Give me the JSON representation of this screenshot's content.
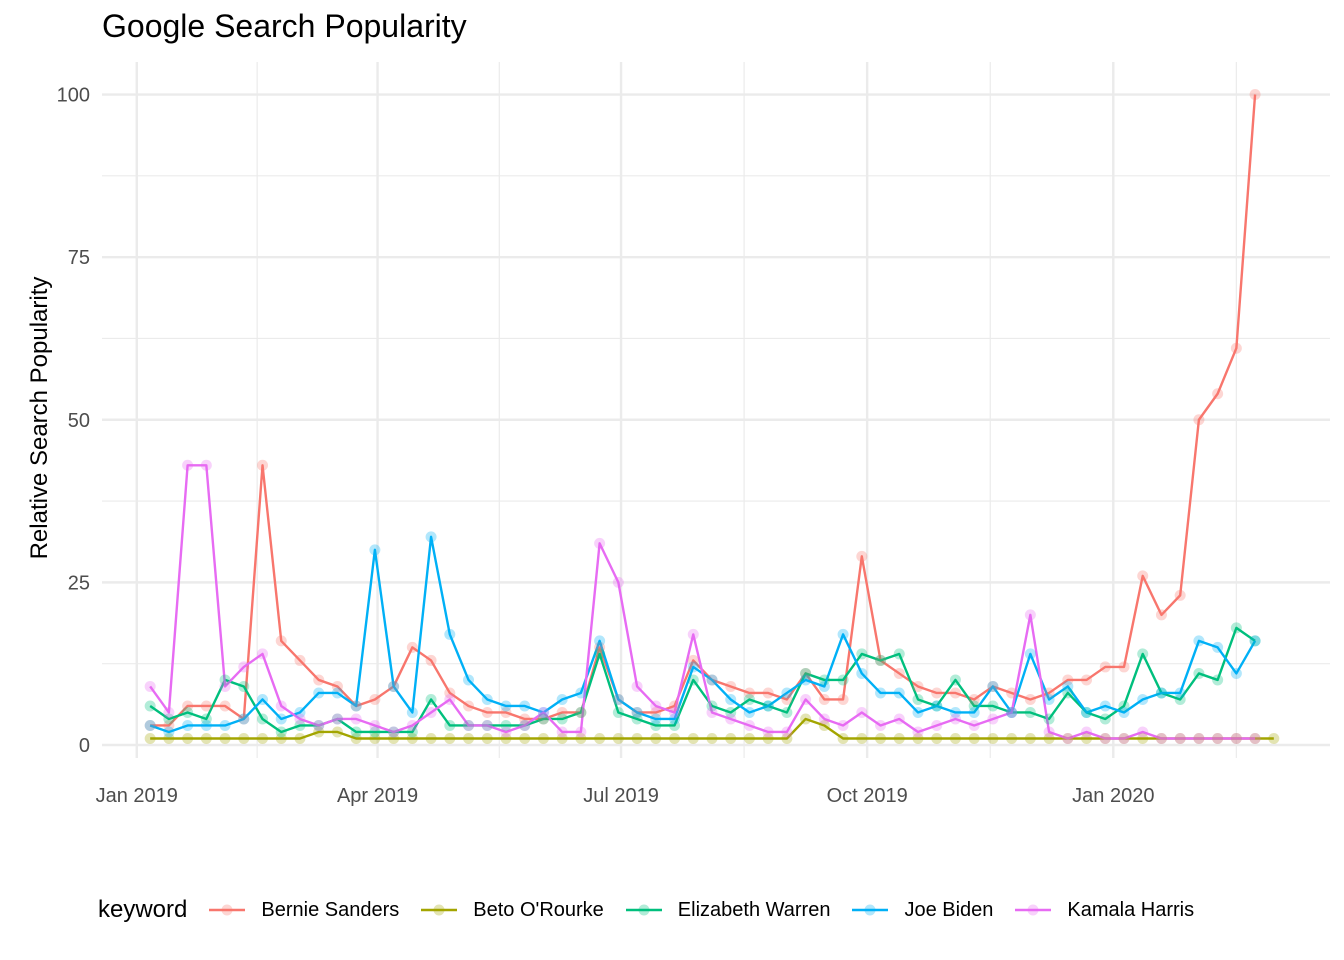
{
  "chart_data": {
    "type": "line",
    "title": "Google Search Popularity",
    "xlabel": "",
    "ylabel": "Relative Search Popularity",
    "legend_title": "keyword",
    "legend_position": "bottom",
    "grid": true,
    "ylim": [
      -2,
      105
    ],
    "yticks": [
      0,
      25,
      50,
      75,
      100
    ],
    "xlim": [
      "2018-12-19",
      "2020-03-22"
    ],
    "xticks": [
      {
        "date": "2019-01-01",
        "label": "Jan 2019"
      },
      {
        "date": "2019-04-01",
        "label": "Apr 2019"
      },
      {
        "date": "2019-07-01",
        "label": "Jul 2019"
      },
      {
        "date": "2019-10-01",
        "label": "Oct 2019"
      },
      {
        "date": "2020-01-01",
        "label": "Jan 2020"
      }
    ],
    "x": [
      "2019-01-06",
      "2019-01-13",
      "2019-01-20",
      "2019-01-27",
      "2019-02-03",
      "2019-02-10",
      "2019-02-17",
      "2019-02-24",
      "2019-03-03",
      "2019-03-10",
      "2019-03-17",
      "2019-03-24",
      "2019-03-31",
      "2019-04-07",
      "2019-04-14",
      "2019-04-21",
      "2019-04-28",
      "2019-05-05",
      "2019-05-12",
      "2019-05-19",
      "2019-05-26",
      "2019-06-02",
      "2019-06-09",
      "2019-06-16",
      "2019-06-23",
      "2019-06-30",
      "2019-07-07",
      "2019-07-14",
      "2019-07-21",
      "2019-07-28",
      "2019-08-04",
      "2019-08-11",
      "2019-08-18",
      "2019-08-25",
      "2019-09-01",
      "2019-09-08",
      "2019-09-15",
      "2019-09-22",
      "2019-09-29",
      "2019-10-06",
      "2019-10-13",
      "2019-10-20",
      "2019-10-27",
      "2019-11-03",
      "2019-11-10",
      "2019-11-17",
      "2019-11-24",
      "2019-12-01",
      "2019-12-08",
      "2019-12-15",
      "2019-12-22",
      "2019-12-29",
      "2020-01-05",
      "2020-01-12",
      "2020-01-19",
      "2020-01-26",
      "2020-02-02",
      "2020-02-09",
      "2020-02-16",
      "2020-02-23",
      "2020-03-01"
    ],
    "series": [
      {
        "name": "Bernie Sanders",
        "color": "#F8766D",
        "values": [
          3,
          3,
          6,
          6,
          6,
          4,
          43,
          16,
          13,
          10,
          9,
          6,
          7,
          9,
          15,
          13,
          8,
          6,
          5,
          5,
          4,
          4,
          5,
          5,
          15,
          7,
          5,
          5,
          6,
          13,
          10,
          9,
          8,
          8,
          7,
          11,
          7,
          7,
          29,
          13,
          11,
          9,
          8,
          8,
          7,
          9,
          8,
          7,
          8,
          10,
          10,
          12,
          12,
          26,
          20,
          23,
          50,
          54,
          61,
          100,
          null
        ]
      },
      {
        "name": "Beto O'Rourke",
        "color": "#A3A500",
        "values": [
          1,
          1,
          1,
          1,
          1,
          1,
          1,
          1,
          1,
          2,
          2,
          1,
          1,
          1,
          1,
          1,
          1,
          1,
          1,
          1,
          1,
          1,
          1,
          1,
          1,
          1,
          1,
          1,
          1,
          1,
          1,
          1,
          1,
          1,
          1,
          4,
          3,
          1,
          1,
          1,
          1,
          1,
          1,
          1,
          1,
          1,
          1,
          1,
          1,
          1,
          1,
          1,
          1,
          1,
          1,
          1,
          1,
          1,
          1,
          1,
          1
        ]
      },
      {
        "name": "Elizabeth Warren",
        "color": "#00BF7D",
        "values": [
          6,
          4,
          5,
          4,
          10,
          9,
          4,
          2,
          3,
          3,
          4,
          2,
          2,
          2,
          2,
          7,
          3,
          3,
          3,
          3,
          3,
          4,
          4,
          5,
          14,
          5,
          4,
          3,
          3,
          10,
          6,
          5,
          7,
          6,
          5,
          11,
          10,
          10,
          14,
          13,
          14,
          7,
          6,
          10,
          6,
          6,
          5,
          5,
          4,
          8,
          5,
          4,
          6,
          14,
          8,
          7,
          11,
          10,
          18,
          16,
          null
        ]
      },
      {
        "name": "Joe Biden",
        "color": "#00B0F6",
        "values": [
          3,
          2,
          3,
          3,
          3,
          4,
          7,
          4,
          5,
          8,
          8,
          6,
          30,
          9,
          5,
          32,
          17,
          10,
          7,
          6,
          6,
          5,
          7,
          8,
          16,
          7,
          5,
          4,
          4,
          12,
          10,
          7,
          5,
          6,
          8,
          10,
          9,
          17,
          11,
          8,
          8,
          5,
          6,
          5,
          5,
          9,
          5,
          14,
          7,
          9,
          5,
          6,
          5,
          7,
          8,
          8,
          16,
          15,
          11,
          16,
          null
        ]
      },
      {
        "name": "Kamala Harris",
        "color": "#E76BF3",
        "values": [
          9,
          5,
          43,
          43,
          9,
          12,
          14,
          6,
          4,
          3,
          4,
          4,
          3,
          2,
          3,
          5,
          7,
          3,
          3,
          2,
          3,
          5,
          2,
          2,
          31,
          25,
          9,
          6,
          5,
          17,
          5,
          4,
          3,
          2,
          2,
          7,
          4,
          3,
          5,
          3,
          4,
          2,
          3,
          4,
          3,
          4,
          5,
          20,
          2,
          1,
          2,
          1,
          1,
          2,
          1,
          1,
          1,
          1,
          1,
          1,
          null
        ]
      }
    ]
  }
}
